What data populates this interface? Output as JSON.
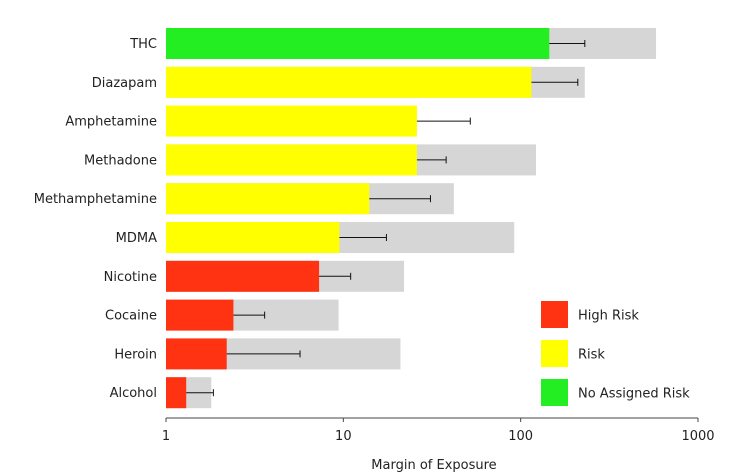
{
  "chart_data": {
    "type": "bar",
    "orientation": "horizontal",
    "xscale": "log",
    "xlim": [
      1,
      1000
    ],
    "xticks": [
      "1",
      "10",
      "100",
      "1000"
    ],
    "xlabel": "Margin of Exposure",
    "ylabel": "",
    "title": "",
    "grid": false,
    "legend_position": "bottom-right",
    "categories": [
      "THC",
      "Diazapam",
      "Amphetamine",
      "Methadone",
      "Methamphetamine",
      "MDMA",
      "Nicotine",
      "Cocaine",
      "Heroin",
      "Alcohol"
    ],
    "series": [
      {
        "role": "value",
        "values": [
          145,
          115,
          26,
          26,
          14,
          9.5,
          7.3,
          2.4,
          2.2,
          1.3
        ],
        "error_upper": [
          230,
          210,
          52,
          38,
          31,
          17.5,
          11,
          3.6,
          5.7,
          1.85
        ],
        "risk": [
          "No Assigned Risk",
          "Risk",
          "Risk",
          "Risk",
          "Risk",
          "Risk",
          "High Risk",
          "High Risk",
          "High Risk",
          "High Risk"
        ]
      },
      {
        "role": "range",
        "values": [
          580,
          230,
          null,
          122,
          42,
          92,
          22,
          9.4,
          21,
          1.8
        ]
      }
    ],
    "legend": [
      {
        "label": "High Risk",
        "color": "#ff3311"
      },
      {
        "label": "Risk",
        "color": "#ffff00"
      },
      {
        "label": "No Assigned Risk",
        "color": "#22ee22"
      }
    ],
    "colors": {
      "High Risk": "#ff3311",
      "Risk": "#ffff00",
      "No Assigned Risk": "#22ee22",
      "range": "#d6d6d6",
      "error": "#111111"
    }
  }
}
